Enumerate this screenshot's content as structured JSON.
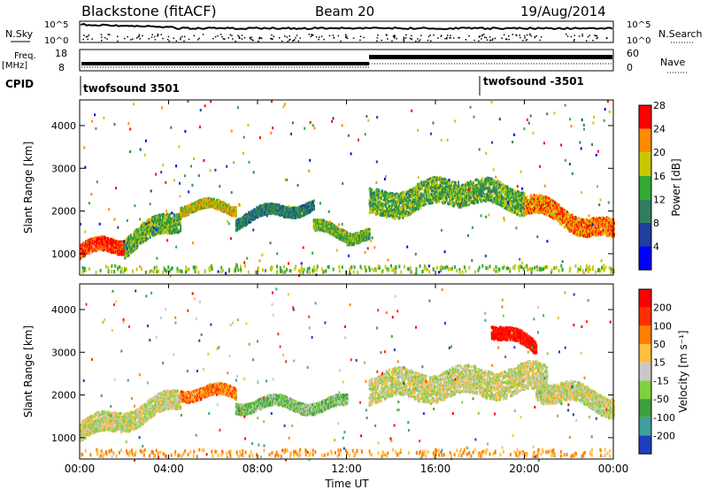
{
  "header": {
    "station": "Blackstone (fitACF)",
    "beam": "Beam 20",
    "date": "19/Aug/2014"
  },
  "panels": {
    "nsky": {
      "left_label": "N.Sky",
      "right_label": "N.Search",
      "left_ticks": [
        "10^5",
        "10^0"
      ],
      "right_ticks": [
        "10^5",
        "10^0"
      ]
    },
    "freq": {
      "left_label_top": "Freq.",
      "left_label_bottom": "[MHz]",
      "left_ticks": [
        "18",
        "8"
      ],
      "right_label": "Nave",
      "right_ticks": [
        "60",
        "0"
      ]
    },
    "cpid": {
      "label": "CPID",
      "programs": [
        {
          "text": "twofsound 3501",
          "start_hour": 0
        },
        {
          "text": "twofsound -3501",
          "start_hour": 18
        }
      ]
    }
  },
  "chart_data": [
    {
      "type": "heatmap",
      "name": "power",
      "ylabel": "Slant Range [km]",
      "xlabel": "Time UT",
      "x_range_hours": [
        0,
        24
      ],
      "ylim_km": [
        500,
        4600
      ],
      "y_ticks": [
        "1000",
        "2000",
        "3000",
        "4000"
      ],
      "colorbar": {
        "label": "Power [dB]",
        "ticks": [
          "4",
          "8",
          "12",
          "16",
          "20",
          "24",
          "28"
        ],
        "colors": [
          "#0000ff",
          "#1e3fa0",
          "#2f7f5f",
          "#33a833",
          "#c8c800",
          "#ff8c00",
          "#ff0000"
        ]
      },
      "bands": [
        {
          "from": 0.0,
          "to": 2.0,
          "center_km": [
            1080,
            1250
          ],
          "width_km": 320,
          "level": 6
        },
        {
          "from": 2.0,
          "to": 4.5,
          "center_km": [
            1250,
            1850
          ],
          "width_km": 450,
          "level": 3
        },
        {
          "from": 4.5,
          "to": 7.0,
          "center_km": [
            2100,
            2100
          ],
          "width_km": 220,
          "level": 4
        },
        {
          "from": 7.0,
          "to": 10.5,
          "center_km": [
            1800,
            2200
          ],
          "width_km": 250,
          "level": 2
        },
        {
          "from": 10.5,
          "to": 12.0,
          "center_km": [
            1600,
            1500
          ],
          "width_km": 260,
          "level": 3
        },
        {
          "from": 12.0,
          "to": 13.0,
          "center_km": [
            1450,
            1400
          ],
          "width_km": 250,
          "level": 3
        },
        {
          "from": 13.0,
          "to": 17.0,
          "center_km": [
            2150,
            2500
          ],
          "width_km": 600,
          "level": 3
        },
        {
          "from": 17.0,
          "to": 20.0,
          "center_km": [
            2500,
            2300
          ],
          "width_km": 550,
          "level": 3
        },
        {
          "from": 20.0,
          "to": 24.0,
          "center_km": [
            2200,
            1500
          ],
          "width_km": 420,
          "level": 5
        }
      ]
    },
    {
      "type": "heatmap",
      "name": "velocity",
      "ylabel": "Slant Range [km]",
      "xlabel": "Time UT",
      "x_range_hours": [
        0,
        24
      ],
      "ylim_km": [
        500,
        4600
      ],
      "y_ticks": [
        "1000",
        "2000",
        "3000",
        "4000"
      ],
      "x_ticks": [
        "00:00",
        "04:00",
        "08:00",
        "12:00",
        "16:00",
        "20:00",
        "00:00"
      ],
      "colorbar": {
        "label": "Velocity [m s⁻¹]",
        "ticks": [
          "200",
          "100",
          "50",
          "15",
          "-15",
          "-50",
          "-100",
          "-200"
        ],
        "colors": [
          "#1f3fbf",
          "#3f9f9f",
          "#3f9f3f",
          "#7fcf3f",
          "#c8c8c8",
          "#ffbf3f",
          "#ff8000",
          "#ff3000",
          "#ff0000"
        ]
      },
      "bands": [
        {
          "from": 0.0,
          "to": 4.5,
          "center_km": [
            1150,
            1900
          ],
          "width_km": 450,
          "level": 4
        },
        {
          "from": 4.5,
          "to": 7.0,
          "center_km": [
            2100,
            2050
          ],
          "width_km": 250,
          "level": 6
        },
        {
          "from": 7.0,
          "to": 12.0,
          "center_km": [
            1800,
            1800
          ],
          "width_km": 250,
          "level": 3
        },
        {
          "from": 13.0,
          "to": 21.0,
          "center_km": [
            2200,
            2400
          ],
          "width_km": 650,
          "level": 4
        },
        {
          "from": 18.5,
          "to": 20.5,
          "center_km": [
            3600,
            3100
          ],
          "width_km": 300,
          "level": 8
        },
        {
          "from": 20.5,
          "to": 24.0,
          "center_km": [
            2200,
            1800
          ],
          "width_km": 450,
          "level": 4
        }
      ]
    }
  ]
}
